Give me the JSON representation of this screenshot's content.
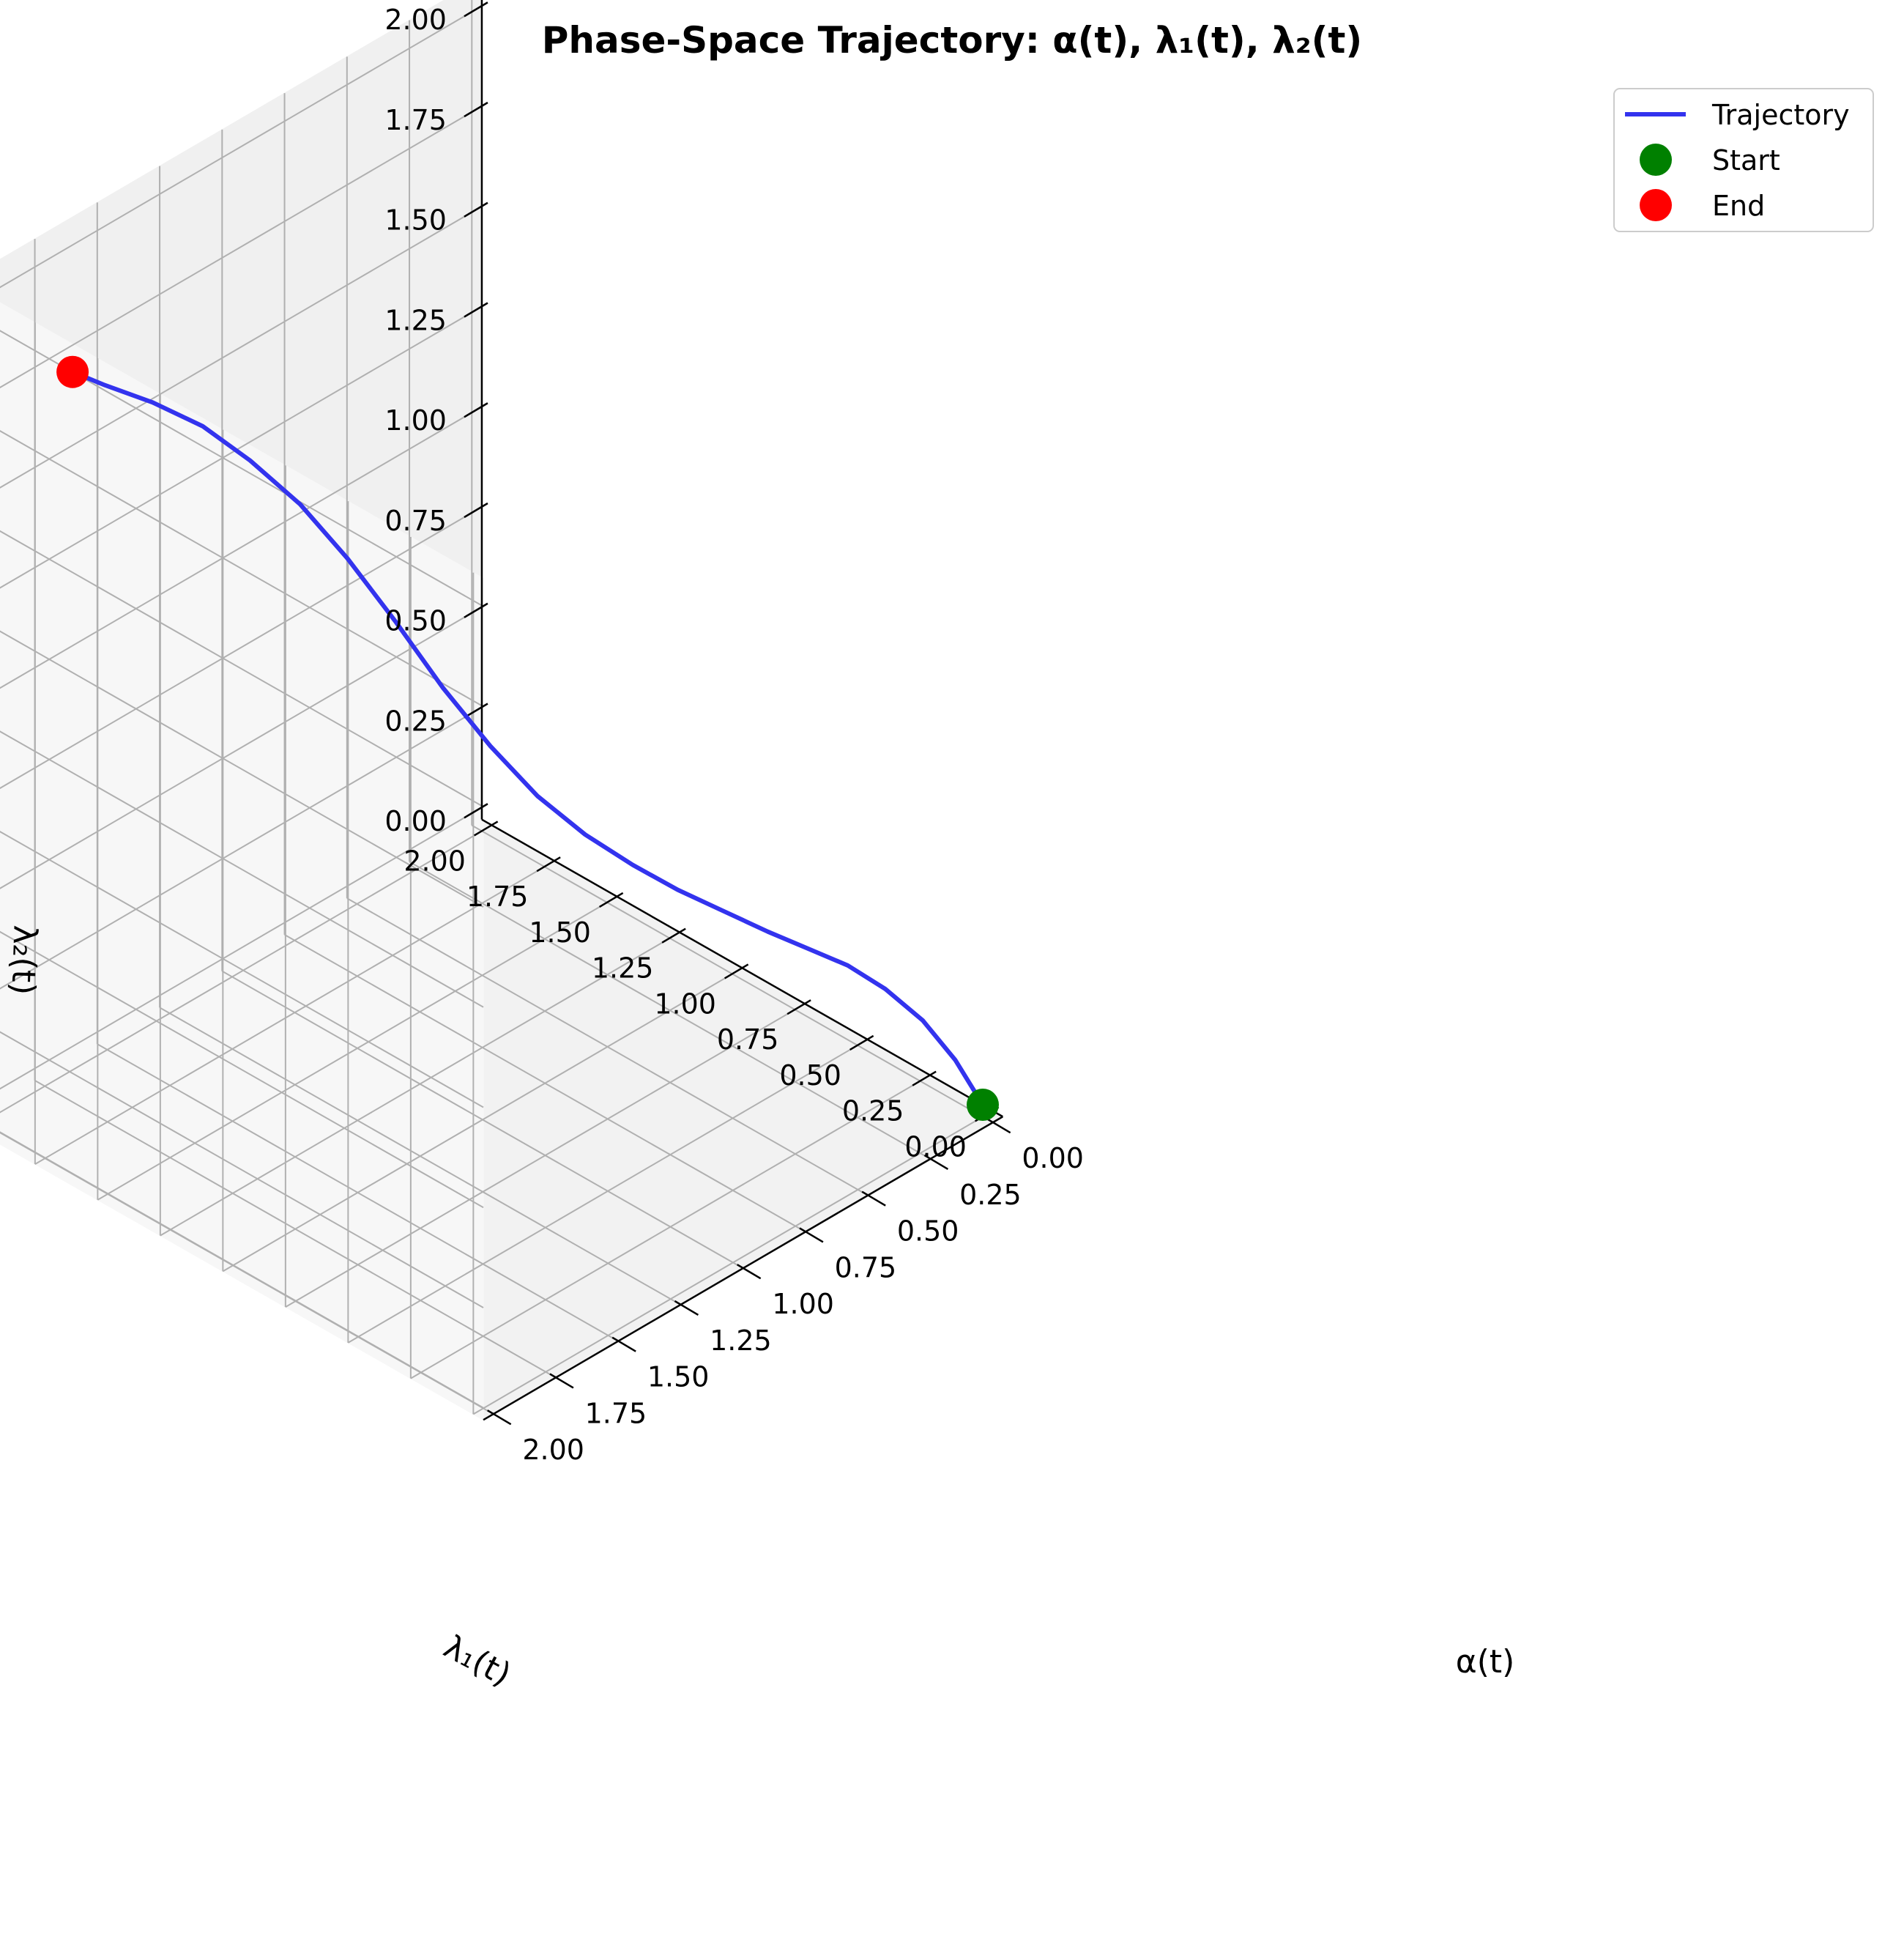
{
  "chart_data": {
    "type": "line",
    "title": "Phase-Space Trajectory: α(t), λ₁(t), λ₂(t)",
    "xlabel": "α(t)",
    "ylabel": "λ₁(t)",
    "zlabel": "λ₂(t)",
    "xlim": [
      0,
      2
    ],
    "ylim": [
      0,
      2
    ],
    "zlim": [
      0,
      2
    ],
    "ticks": [
      "0.00",
      "0.25",
      "0.50",
      "0.75",
      "1.00",
      "1.25",
      "1.50",
      "1.75",
      "2.00"
    ],
    "grid": true,
    "legend_position": "top-right",
    "series": [
      {
        "name": "Trajectory",
        "color": "#3333ee",
        "alpha": [
          0.0,
          0.08,
          0.16,
          0.25,
          0.34,
          0.43,
          0.52,
          0.62,
          0.72,
          0.82,
          0.92,
          1.02,
          1.12,
          1.22,
          1.32,
          1.42,
          1.52,
          1.62,
          1.72,
          1.82,
          1.91,
          1.97
        ],
        "lambda1": [
          0.0,
          0.03,
          0.08,
          0.14,
          0.2,
          0.27,
          0.34,
          0.42,
          0.5,
          0.58,
          0.67,
          0.76,
          0.85,
          0.94,
          1.03,
          1.12,
          1.21,
          1.31,
          1.4,
          1.5,
          1.6,
          1.67
        ],
        "lambda2": [
          0.0,
          0.13,
          0.24,
          0.33,
          0.4,
          0.45,
          0.5,
          0.56,
          0.62,
          0.69,
          0.77,
          0.87,
          1.0,
          1.15,
          1.32,
          1.48,
          1.62,
          1.73,
          1.82,
          1.88,
          1.92,
          1.95
        ]
      }
    ],
    "markers": [
      {
        "name": "Start",
        "color": "#008000",
        "alpha": 0.0,
        "lambda1": 0.0,
        "lambda2": 0.0
      },
      {
        "name": "End",
        "color": "#ff0000",
        "alpha": 1.97,
        "lambda1": 1.67,
        "lambda2": 1.95
      }
    ]
  }
}
